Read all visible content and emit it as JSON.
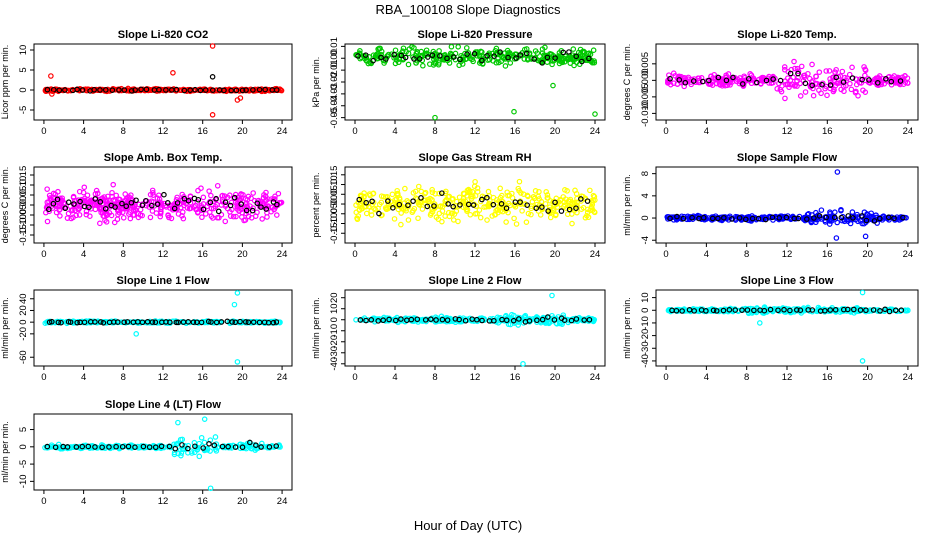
{
  "figure": {
    "title": "RBA_100108  Slope Diagnostics",
    "xlabel": "Hour of Day (UTC)"
  },
  "colors": {
    "Slope Li-820 CO2": "#ff0000",
    "Slope Li-820 Pressure": "#00c800",
    "Slope Li-820 Temp.": "#ff00ff",
    "Slope Amb. Box Temp.": "#ff00ff",
    "Slope Gas Stream RH": "#ffff00",
    "Slope Sample Flow": "#0000ff",
    "Slope Line 1 Flow": "#00ffff",
    "Slope Line 2 Flow": "#00ffff",
    "Slope Line 3 Flow": "#00ffff",
    "Slope Line 4 (LT) Flow": "#00ffff",
    "flagged": "#000000"
  },
  "chart_data": [
    {
      "type": "scatter",
      "title": "Slope Li-820 CO2",
      "ylabel": "Licor ppm per min.",
      "xlim": [
        -1,
        25
      ],
      "ylim": [
        -7.5,
        11.5
      ],
      "xticks": [
        0,
        4,
        8,
        12,
        16,
        20,
        24
      ],
      "yticks": [
        -5,
        0,
        5,
        10
      ],
      "ytick_labels": [
        "-5",
        "0",
        "5",
        "10"
      ],
      "grid": false,
      "series": [
        {
          "name": "",
          "points": "dense band near 0 across 0-24 h",
          "outliers": [
            [
              0.7,
              3.5
            ],
            [
              0.8,
              -1.0
            ],
            [
              13.0,
              4.3
            ],
            [
              17.0,
              11.0
            ],
            [
              17.0,
              -6.2
            ],
            [
              19.5,
              -2.5
            ],
            [
              19.8,
              -2.0
            ]
          ]
        },
        {
          "name": "",
          "color": "#000000",
          "outliers": [
            [
              17.0,
              3.3
            ]
          ]
        }
      ]
    },
    {
      "type": "scatter",
      "title": "Slope Li-820 Pressure",
      "ylabel": "kPa per min.",
      "xlim": [
        -1,
        25
      ],
      "ylim": [
        -0.052,
        0.012
      ],
      "xticks": [
        0,
        4,
        8,
        12,
        16,
        20,
        24
      ],
      "yticks": [
        -0.05,
        -0.04,
        -0.03,
        -0.02,
        -0.01,
        0.0,
        0.01
      ],
      "ytick_labels": [
        "-0.05",
        "-0.04",
        "-0.03",
        "-0.02",
        "-0.01",
        "0.00",
        "0.01"
      ],
      "grid": false,
      "series": [
        {
          "name": "",
          "points": "band -0.01 to 0.008",
          "outliers": [
            [
              8.0,
              -0.05
            ],
            [
              15.9,
              -0.045
            ],
            [
              19.8,
              -0.023
            ],
            [
              24.0,
              -0.047
            ]
          ]
        }
      ]
    },
    {
      "type": "scatter",
      "title": "Slope Li-820 Temp.",
      "ylabel": "degrees C per min.",
      "xlim": [
        -1,
        25
      ],
      "ylim": [
        -0.012,
        0.011
      ],
      "xticks": [
        0,
        4,
        8,
        12,
        16,
        20,
        24
      ],
      "yticks": [
        -0.01,
        -0.005,
        0.0,
        0.005
      ],
      "ytick_labels": [
        "-0.010",
        "-0.005",
        "0.000",
        "0.005"
      ],
      "grid": false,
      "series": [
        {
          "name": "",
          "points": "band near 0, widening 12-20 h"
        }
      ]
    },
    {
      "type": "scatter",
      "title": "Slope Amb. Box Temp.",
      "ylabel": "degrees C per min.",
      "xlim": [
        -1,
        25
      ],
      "ylim": [
        -0.19,
        0.19
      ],
      "xticks": [
        0,
        4,
        8,
        12,
        16,
        20,
        24
      ],
      "yticks": [
        -0.15,
        -0.1,
        -0.05,
        0.0,
        0.05,
        0.1,
        0.15
      ],
      "ytick_labels": [
        "-0.15",
        "-0.10",
        "-0.05",
        "0.00",
        "0.05",
        "0.10",
        "0.15"
      ],
      "grid": false,
      "series": [
        {
          "name": "",
          "points": "spread -0.15 to 0.15"
        }
      ]
    },
    {
      "type": "scatter",
      "title": "Slope Gas Stream RH",
      "ylabel": "percent per min.",
      "xlim": [
        -1,
        25
      ],
      "ylim": [
        -0.2,
        0.19
      ],
      "xticks": [
        0,
        4,
        8,
        12,
        16,
        20,
        24
      ],
      "yticks": [
        -0.15,
        -0.1,
        -0.05,
        0.0,
        0.05,
        0.1,
        0.15
      ],
      "ytick_labels": [
        "-0.15",
        "-0.10",
        "-0.05",
        "0.00",
        "0.05",
        "0.10",
        "0.15"
      ],
      "grid": false,
      "series": [
        {
          "name": "",
          "points": "spread -0.15 to 0.15"
        }
      ]
    },
    {
      "type": "scatter",
      "title": "Slope Sample Flow",
      "ylabel": "ml/min per min.",
      "xlim": [
        -1,
        25
      ],
      "ylim": [
        -4.5,
        9.2
      ],
      "xticks": [
        0,
        4,
        8,
        12,
        16,
        20,
        24
      ],
      "yticks": [
        -4,
        0,
        4,
        8
      ],
      "ytick_labels": [
        "-4",
        "0",
        "4",
        "8"
      ],
      "grid": false,
      "series": [
        {
          "name": "",
          "points": "band near 0",
          "outliers": [
            [
              17.0,
              8.3
            ],
            [
              19.8,
              -3.3
            ],
            [
              16.9,
              -3.6
            ]
          ]
        }
      ]
    },
    {
      "type": "scatter",
      "title": "Slope Line 1 Flow",
      "ylabel": "ml/min per min.",
      "xlim": [
        -1,
        25
      ],
      "ylim": [
        -75,
        55
      ],
      "xticks": [
        0,
        4,
        8,
        12,
        16,
        20,
        24
      ],
      "yticks": [
        -60,
        -20,
        0,
        20,
        40
      ],
      "ytick_labels": [
        "-60",
        "-20",
        "0",
        "20",
        "40"
      ],
      "grid": false,
      "series": [
        {
          "name": "",
          "points": "band near 0",
          "outliers": [
            [
              19.5,
              50
            ],
            [
              19.2,
              30
            ],
            [
              19.5,
              -68
            ],
            [
              9.3,
              -20
            ]
          ]
        }
      ]
    },
    {
      "type": "scatter",
      "title": "Slope Line 2 Flow",
      "ylabel": "ml/min per min.",
      "xlim": [
        -1,
        25
      ],
      "ylim": [
        -42,
        27
      ],
      "xticks": [
        0,
        4,
        8,
        12,
        16,
        20,
        24
      ],
      "yticks": [
        -40,
        -30,
        -20,
        -10,
        0,
        10,
        20
      ],
      "ytick_labels": [
        "-40",
        "-30",
        "-20",
        "-10",
        "0",
        "10",
        "20"
      ],
      "grid": false,
      "series": [
        {
          "name": "",
          "points": "band near 0",
          "outliers": [
            [
              16.8,
              -40
            ],
            [
              19.7,
              22
            ]
          ]
        }
      ]
    },
    {
      "type": "scatter",
      "title": "Slope Line 3 Flow",
      "ylabel": "ml/min per min.",
      "xlim": [
        -1,
        25
      ],
      "ylim": [
        -44,
        16
      ],
      "xticks": [
        0,
        4,
        8,
        12,
        16,
        20,
        24
      ],
      "yticks": [
        -40,
        -30,
        -20,
        -10,
        0,
        10
      ],
      "ytick_labels": [
        "-40",
        "-30",
        "-20",
        "-10",
        "0",
        "10"
      ],
      "grid": false,
      "series": [
        {
          "name": "",
          "points": "band near 0",
          "outliers": [
            [
              19.5,
              14
            ],
            [
              19.5,
              -40
            ],
            [
              9.3,
              -10
            ]
          ]
        }
      ]
    },
    {
      "type": "scatter",
      "title": "Slope Line 4 (LT) Flow",
      "ylabel": "ml/min per min.",
      "xlim": [
        -1,
        25
      ],
      "ylim": [
        -12.5,
        9.5
      ],
      "xticks": [
        0,
        4,
        8,
        12,
        16,
        20,
        24
      ],
      "yticks": [
        -10,
        -5,
        0,
        5
      ],
      "ytick_labels": [
        "-10",
        "-5",
        "0",
        "5"
      ],
      "grid": false,
      "series": [
        {
          "name": "",
          "points": "band near 0, spread 14-17 h",
          "outliers": [
            [
              16.8,
              -12
            ],
            [
              16.2,
              8
            ],
            [
              13.5,
              7
            ]
          ]
        }
      ]
    }
  ]
}
